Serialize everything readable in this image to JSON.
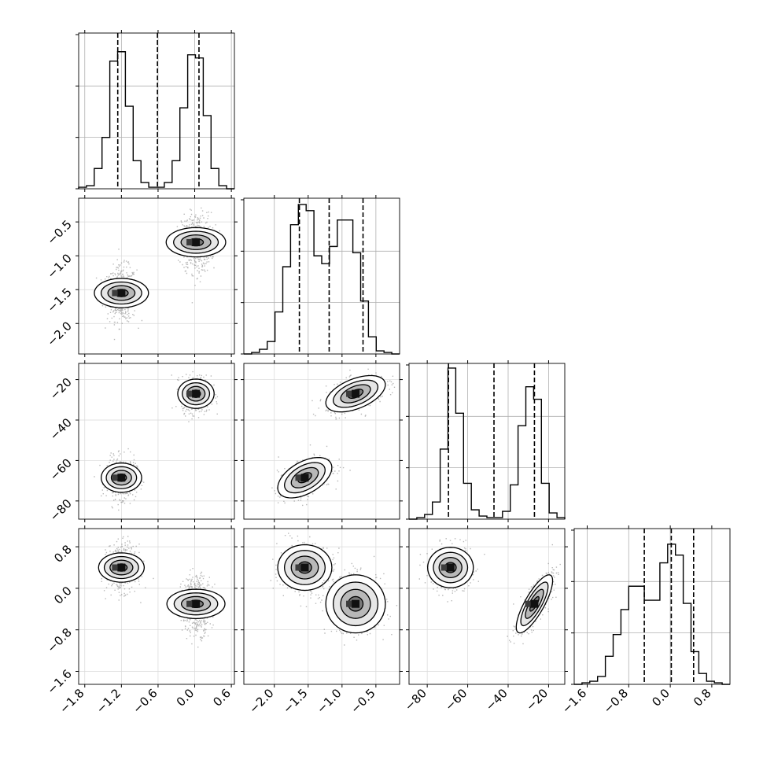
{
  "chart_data": {
    "type": "corner",
    "grid": true,
    "parameters": [
      {
        "range": [
          -1.9,
          0.65
        ],
        "ticks": [
          "-1.8",
          "-1.2",
          "-0.6",
          "0.0",
          "0.6"
        ],
        "tick_values": [
          -1.8,
          -1.2,
          -0.6,
          0.0,
          0.6
        ],
        "quantiles": [
          -1.26,
          -0.61,
          0.07
        ]
      },
      {
        "range": [
          -2.45,
          -0.15
        ],
        "ticks": [
          "-2.0",
          "-1.5",
          "-1.0",
          "-0.5"
        ],
        "tick_values": [
          -2.0,
          -1.5,
          -1.0,
          -0.5
        ],
        "quantiles": [
          -1.63,
          -1.19,
          -0.69
        ]
      },
      {
        "range": [
          -89,
          -12
        ],
        "ticks": [
          "-80",
          "-60",
          "-40",
          "-20"
        ],
        "tick_values": [
          -80,
          -60,
          -40,
          -20
        ],
        "quantiles": [
          -69.5,
          -47,
          -27
        ]
      },
      {
        "range": [
          -1.85,
          1.15
        ],
        "ticks": [
          "-1.6",
          "-0.8",
          "0.0",
          "0.8"
        ],
        "tick_values": [
          -1.6,
          -0.8,
          0.0,
          0.8
        ],
        "quantiles": [
          -0.5,
          0.02,
          0.45
        ]
      }
    ],
    "histograms": [
      [
        0.01,
        0.02,
        0.13,
        0.33,
        0.82,
        0.88,
        0.53,
        0.18,
        0.04,
        0.01,
        0.01,
        0.04,
        0.18,
        0.52,
        0.86,
        0.84,
        0.47,
        0.13,
        0.02,
        0.0
      ],
      [
        0.0,
        0.01,
        0.03,
        0.08,
        0.27,
        0.56,
        0.83,
        0.96,
        0.92,
        0.63,
        0.58,
        0.69,
        0.86,
        0.86,
        0.65,
        0.34,
        0.11,
        0.02,
        0.01,
        0.0
      ],
      [
        0.0,
        0.01,
        0.03,
        0.11,
        0.45,
        0.97,
        0.68,
        0.23,
        0.06,
        0.02,
        0.01,
        0.01,
        0.05,
        0.22,
        0.6,
        0.85,
        0.77,
        0.23,
        0.04,
        0.01
      ],
      [
        0.0,
        0.01,
        0.02,
        0.05,
        0.18,
        0.32,
        0.48,
        0.63,
        0.63,
        0.54,
        0.54,
        0.78,
        0.9,
        0.83,
        0.52,
        0.21,
        0.07,
        0.02,
        0.01,
        0.0
      ]
    ],
    "modes": [
      {
        "mean": [
          -1.2,
          -1.55,
          -68.5,
          0.4
        ],
        "sd": [
          0.12,
          0.2,
          5.0,
          0.22
        ]
      },
      {
        "mean": [
          0.02,
          -0.8,
          -27.0,
          -0.3
        ],
        "sd": [
          0.12,
          0.22,
          4.5,
          0.28
        ]
      }
    ],
    "correlations": [
      [
        [
          1,
          0,
          0,
          0
        ],
        [
          0,
          1,
          0.5,
          0
        ],
        [
          0,
          0.5,
          1,
          0
        ],
        [
          0,
          0,
          0,
          1
        ]
      ],
      [
        [
          1,
          0,
          0,
          0
        ],
        [
          0,
          1,
          0.5,
          0
        ],
        [
          0,
          0.5,
          1,
          0.8
        ],
        [
          0,
          0,
          0.8,
          1
        ]
      ]
    ],
    "contour_levels_sigma": [
      0.5,
      1.0,
      1.5,
      2.0
    ]
  }
}
